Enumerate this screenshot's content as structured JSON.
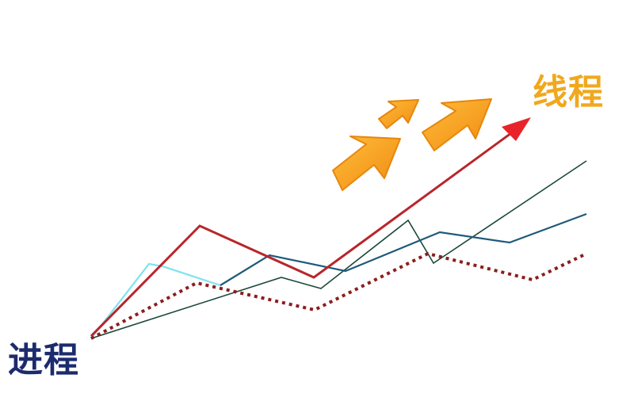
{
  "labels": {
    "start": "进程",
    "end": "线程"
  },
  "colors": {
    "start_label": "#1c2a6e",
    "end_label": "#f0a81e",
    "red_line": "#b8262b",
    "red_arrowhead": "#e8232a",
    "dotted_line": "#8b1e1e",
    "blue_line": "#1f5a7a",
    "light_blue_segment": "#7fe3f0",
    "dark_green_line": "#1c4a3a",
    "big_arrows": "#f5a11c"
  },
  "icons": [
    "orange-arrow-icon",
    "orange-arrow-icon",
    "orange-arrow-icon",
    "red-arrowhead-icon"
  ]
}
